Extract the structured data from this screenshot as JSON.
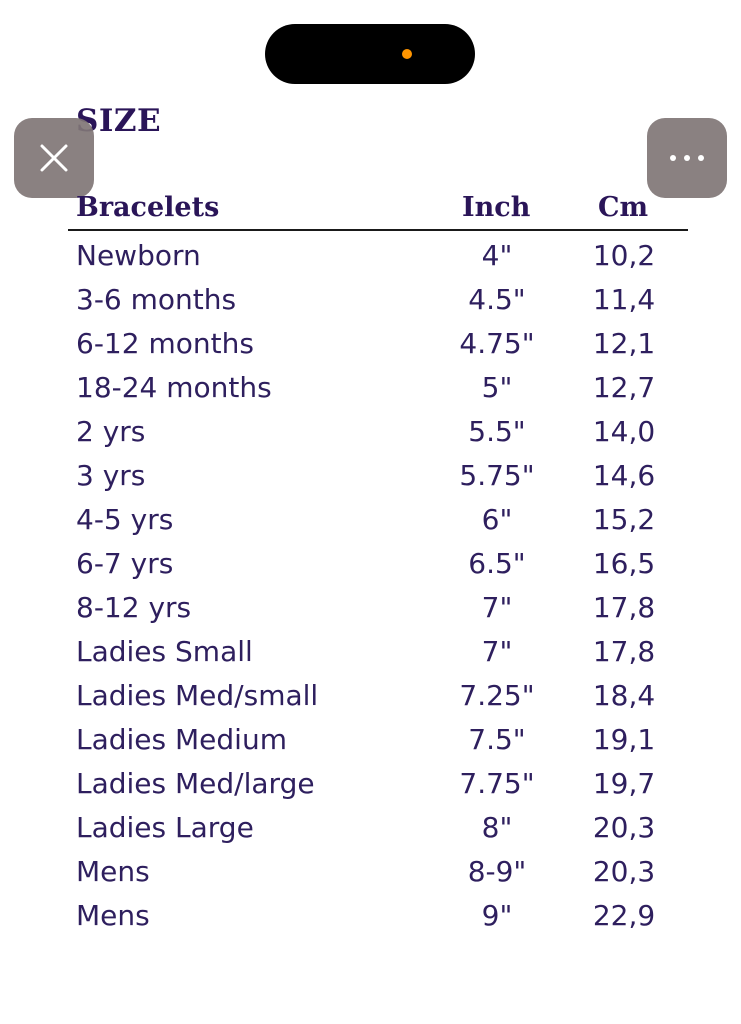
{
  "top_overlay": {
    "close_icon": "close-icon",
    "more_icon": "more-horizontal-icon",
    "island_indicator_color": "#ff9500"
  },
  "chart": {
    "title": "SIZE",
    "headers": [
      "Bracelets",
      "Inch",
      "Cm"
    ],
    "rows": [
      [
        "Newborn",
        "4\"",
        "10,2"
      ],
      [
        "3-6 months",
        "4.5\"",
        "11,4"
      ],
      [
        "6-12 months",
        "4.75\"",
        "12,1"
      ],
      [
        "18-24 months",
        "5\"",
        "12,7"
      ],
      [
        "2 yrs",
        "5.5\"",
        "14,0"
      ],
      [
        "3 yrs",
        "5.75\"",
        "14,6"
      ],
      [
        "4-5 yrs",
        "6\"",
        "15,2"
      ],
      [
        "6-7 yrs",
        "6.5\"",
        "16,5"
      ],
      [
        "8-12 yrs",
        "7\"",
        "17,8"
      ],
      [
        "Ladies Small",
        "7\"",
        "17,8"
      ],
      [
        "Ladies Med/small",
        "7.25\"",
        "18,4"
      ],
      [
        "Ladies Medium",
        "7.5\"",
        "19,1"
      ],
      [
        "Ladies Med/large",
        "7.75\"",
        "19,7"
      ],
      [
        "Ladies Large",
        "8\"",
        "20,3"
      ],
      [
        "Mens",
        "8-9\"",
        "20,3"
      ],
      [
        "Mens",
        "9\"",
        "22,9"
      ]
    ]
  },
  "colors": {
    "text": "#2e1f5e",
    "heading": "#2a1558",
    "overlay_button": "#807676"
  }
}
